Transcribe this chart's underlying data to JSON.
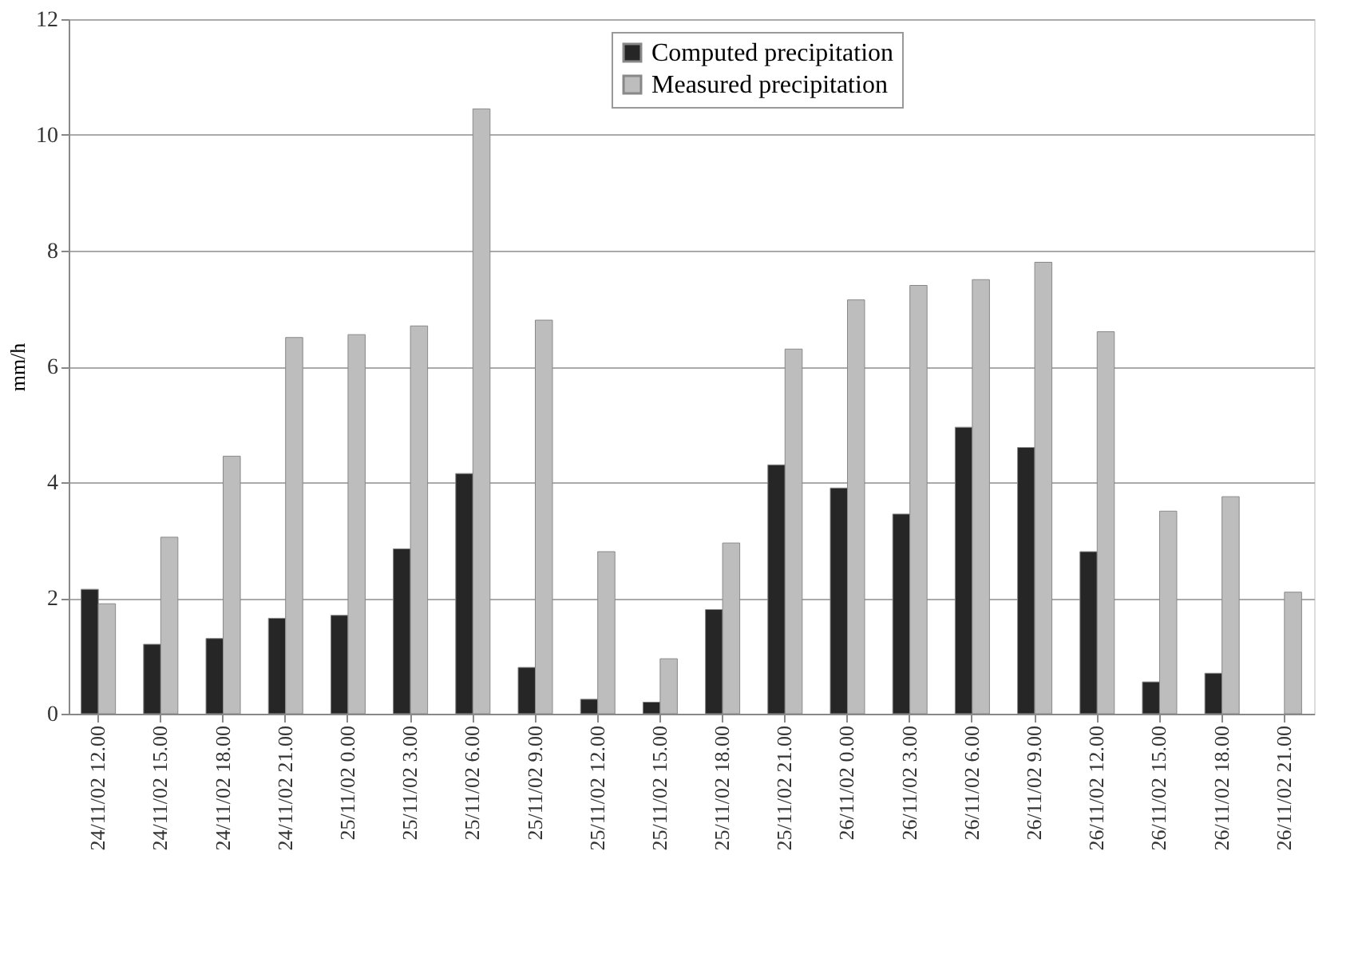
{
  "chart_data": {
    "type": "bar",
    "ylabel": "mm/h",
    "categories": [
      "24/11/02 12.00",
      "24/11/02 15.00",
      "24/11/02 18.00",
      "24/11/02 21.00",
      "25/11/02 0.00",
      "25/11/02 3.00",
      "25/11/02 6.00",
      "25/11/02 9.00",
      "25/11/02 12.00",
      "25/11/02 15.00",
      "25/11/02 18.00",
      "25/11/02 21.00",
      "26/11/02 0.00",
      "26/11/02 3.00",
      "26/11/02 6.00",
      "26/11/02 9.00",
      "26/11/02 12.00",
      "26/11/02 15.00",
      "26/11/02 18.00",
      "26/11/02 21.00"
    ],
    "series": [
      {
        "name": "Computed precipitation",
        "color": "#262626",
        "values": [
          2.15,
          1.2,
          1.3,
          1.65,
          1.7,
          2.85,
          4.15,
          0.8,
          0.25,
          0.2,
          1.8,
          4.3,
          3.9,
          3.45,
          4.95,
          4.6,
          2.8,
          0.55,
          0.7,
          null
        ]
      },
      {
        "name": "Measured precipitation",
        "color": "#bdbdbd",
        "values": [
          1.9,
          3.05,
          4.45,
          6.5,
          6.55,
          6.7,
          10.45,
          6.8,
          2.8,
          0.95,
          2.95,
          6.3,
          7.15,
          7.4,
          7.5,
          7.8,
          6.6,
          3.5,
          3.75,
          2.1
        ]
      }
    ],
    "ylim": [
      0,
      12
    ],
    "yticks": [
      0,
      2,
      4,
      6,
      8,
      10,
      12
    ],
    "grid": "y",
    "legend": "top"
  }
}
